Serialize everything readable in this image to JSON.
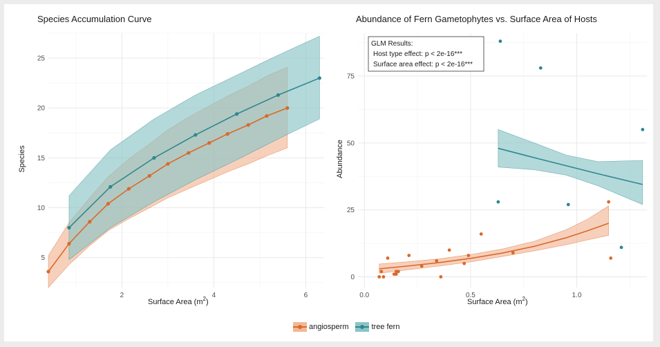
{
  "colors": {
    "angiosperm": "#d9692a",
    "angiosperm_fill": "#f3b796",
    "tree_fern": "#2f8690",
    "tree_fern_fill": "#8cc4c6"
  },
  "legend": {
    "items": [
      {
        "label": "angiosperm",
        "color_key": "angiosperm"
      },
      {
        "label": "tree fern",
        "color_key": "tree_fern"
      }
    ],
    "position": "bottom"
  },
  "chart_data": [
    {
      "type": "line",
      "title": "Species Accumulation Curve",
      "xlabel": "Surface Area (m",
      "xlabel_sup": "2",
      "xlabel_end": ")",
      "ylabel": "Species",
      "xlim": [
        0.4,
        6.4
      ],
      "ylim": [
        2.0,
        27.5
      ],
      "xticks": [
        {
          "v": 2,
          "label": "2"
        },
        {
          "v": 4,
          "label": "4"
        },
        {
          "v": 6,
          "label": "6"
        }
      ],
      "yticks": [
        {
          "v": 5,
          "label": "5"
        },
        {
          "v": 10,
          "label": "10"
        },
        {
          "v": 15,
          "label": "15"
        },
        {
          "v": 20,
          "label": "20"
        },
        {
          "v": 25,
          "label": "25"
        }
      ],
      "grid": true,
      "series": [
        {
          "name": "angiosperm",
          "color_key": "angiosperm",
          "x": [
            0.4,
            0.85,
            1.3,
            1.7,
            2.15,
            2.6,
            3.0,
            3.45,
            3.9,
            4.3,
            4.75,
            5.15,
            5.6
          ],
          "y": [
            3.6,
            6.4,
            8.6,
            10.4,
            11.9,
            13.2,
            14.4,
            15.5,
            16.5,
            17.4,
            18.3,
            19.2,
            20.0
          ],
          "lower": [
            2.0,
            4.3,
            6.2,
            7.7,
            8.9,
            10.0,
            11.0,
            11.9,
            12.8,
            13.6,
            14.4,
            15.2,
            16.0
          ],
          "upper": [
            5.2,
            8.5,
            11.0,
            13.1,
            14.9,
            16.4,
            17.8,
            19.1,
            20.2,
            21.2,
            22.2,
            23.2,
            24.1
          ]
        },
        {
          "name": "tree fern",
          "color_key": "tree_fern",
          "x": [
            0.85,
            1.75,
            2.7,
            3.6,
            4.5,
            5.4,
            6.3
          ],
          "y": [
            8.0,
            12.1,
            15.0,
            17.3,
            19.4,
            21.3,
            23.0
          ],
          "lower": [
            4.8,
            8.0,
            10.6,
            12.8,
            14.8,
            16.9,
            18.9
          ],
          "upper": [
            11.2,
            15.8,
            18.9,
            21.3,
            23.3,
            25.3,
            27.2
          ]
        }
      ]
    },
    {
      "type": "scatter",
      "title": "Abundance of Fern Gametophytes vs. Surface Area of Hosts",
      "xlabel": "Surface Area (m",
      "xlabel_sup": "2",
      "xlabel_end": ")",
      "ylabel": "Abundance",
      "xlim": [
        -0.03,
        1.33
      ],
      "ylim": [
        -4,
        91
      ],
      "xticks": [
        {
          "v": 0.0,
          "label": "0.0"
        },
        {
          "v": 0.5,
          "label": "0.5"
        },
        {
          "v": 1.0,
          "label": "1.0"
        }
      ],
      "yticks": [
        {
          "v": 0,
          "label": "0"
        },
        {
          "v": 25,
          "label": "25"
        },
        {
          "v": 50,
          "label": "50"
        },
        {
          "v": 75,
          "label": "75"
        }
      ],
      "grid": true,
      "annotation": {
        "lines": [
          "GLM Results:",
          "Host type effect: p < 2e-16***",
          "Surface area effect: p < 2e-16***"
        ]
      },
      "points": [
        {
          "group": "angiosperm",
          "x": [
            0.07,
            0.08,
            0.09,
            0.11,
            0.14,
            0.15,
            0.15,
            0.16,
            0.21,
            0.27,
            0.34,
            0.36,
            0.4,
            0.47,
            0.49,
            0.55,
            0.7,
            1.15,
            1.16
          ],
          "y": [
            0,
            2,
            0,
            7,
            1,
            2,
            1,
            2,
            8,
            4,
            6,
            0,
            10,
            5,
            8,
            16,
            9,
            28,
            7
          ]
        },
        {
          "group": "tree fern",
          "x": [
            0.63,
            0.64,
            0.83,
            0.96,
            1.21,
            1.31
          ],
          "y": [
            28,
            88,
            78,
            27,
            11,
            55
          ]
        }
      ],
      "fits": [
        {
          "group": "angiosperm",
          "x": [
            0.07,
            0.2,
            0.35,
            0.5,
            0.65,
            0.8,
            0.95,
            1.05,
            1.15
          ],
          "y": [
            3.0,
            4.0,
            5.3,
            6.9,
            8.9,
            11.4,
            14.6,
            17.2,
            20.0
          ],
          "lower": [
            1.3,
            2.6,
            4.0,
            5.6,
            7.6,
            9.7,
            12.0,
            13.8,
            15.5
          ],
          "upper": [
            4.8,
            5.6,
            6.7,
            8.3,
            10.4,
            13.3,
            17.6,
            21.5,
            26.5
          ]
        },
        {
          "group": "tree fern",
          "x": [
            0.63,
            0.8,
            0.95,
            1.1,
            1.31
          ],
          "y": [
            48,
            44.5,
            41.5,
            38.5,
            34.5
          ],
          "lower": [
            41,
            40,
            38,
            34,
            27
          ],
          "upper": [
            55,
            50,
            45.5,
            43,
            43.5
          ]
        }
      ]
    }
  ]
}
